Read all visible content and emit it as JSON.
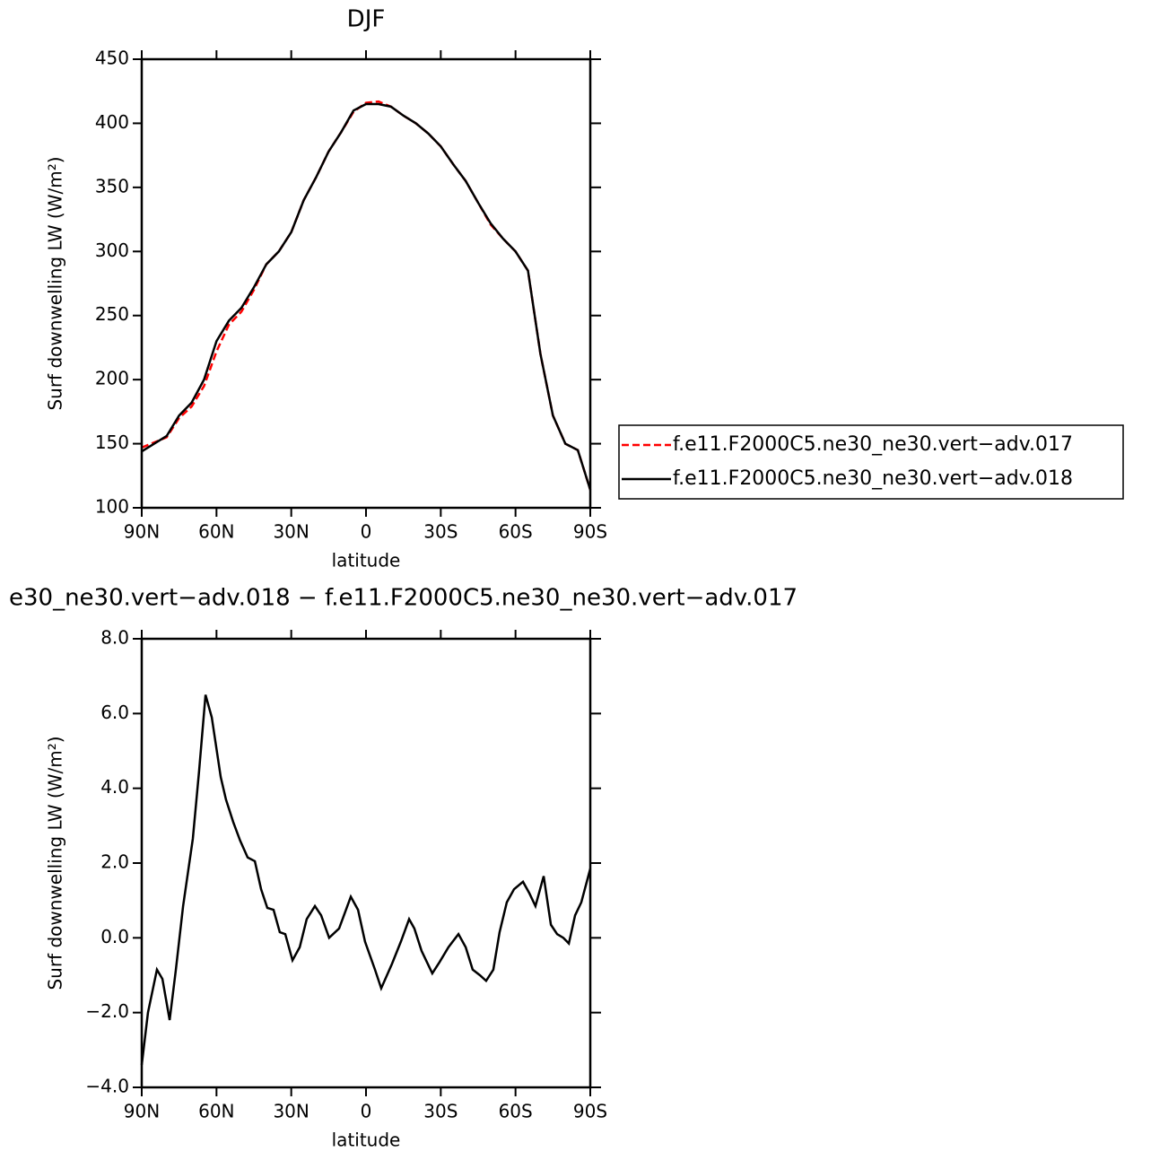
{
  "chart_data": [
    {
      "type": "line",
      "title": "DJF",
      "x_label": "latitude",
      "y_label": "Surf downwelling LW (W/m²)",
      "x": [
        90,
        85,
        80,
        75,
        70,
        65,
        60,
        55,
        50,
        45,
        40,
        35,
        30,
        25,
        20,
        15,
        10,
        5,
        0,
        -5,
        -10,
        -15,
        -20,
        -25,
        -30,
        -35,
        -40,
        -45,
        -50,
        -55,
        -60,
        -65,
        -70,
        -75,
        -80,
        -85,
        -90
      ],
      "series": [
        {
          "name": "f.e11.F2000C5.ne30_ne30.vert−adv.017",
          "color": "#ff0000",
          "line_style": "dashed",
          "values": [
            147,
            151,
            155,
            170,
            179,
            195,
            222,
            243,
            253,
            270,
            290,
            300,
            315,
            340,
            358,
            378,
            393,
            409,
            416,
            417,
            413,
            406,
            400,
            392,
            382,
            368,
            355,
            338,
            321,
            310,
            300,
            285,
            220,
            172,
            150,
            145,
            114
          ]
        },
        {
          "name": "f.e11.F2000C5.ne30_ne30.vert−adv.018",
          "color": "#000000",
          "line_style": "solid",
          "values": [
            144,
            150,
            156,
            172,
            182,
            200,
            230,
            246,
            256,
            272,
            290,
            300,
            315,
            340,
            358,
            378,
            393,
            410,
            415,
            415,
            413,
            406,
            400,
            392,
            382,
            368,
            355,
            338,
            322,
            310,
            300,
            285,
            220,
            172,
            150,
            145,
            114
          ]
        }
      ],
      "xlim": [
        90,
        -90
      ],
      "xticks": [
        {
          "value": 90,
          "label": "90N"
        },
        {
          "value": 60,
          "label": "60N"
        },
        {
          "value": 30,
          "label": "30N"
        },
        0,
        {
          "value": -30,
          "label": "30S"
        },
        {
          "value": -60,
          "label": "60S"
        },
        {
          "value": -90,
          "label": "90S"
        }
      ],
      "ylim": [
        100,
        450
      ],
      "yticks": [
        100,
        150,
        200,
        250,
        300,
        350,
        400,
        450
      ],
      "legend": "right"
    },
    {
      "type": "line",
      "title": "e30_ne30.vert−adv.018 − f.e11.F2000C5.ne30_ne30.vert−adv.017",
      "x_label": "latitude",
      "y_label": "Surf downwelling LW (W/m²)",
      "x": [
        90,
        87.5,
        83.9,
        81.7,
        78.8,
        76.3,
        73.4,
        69.5,
        67.0,
        64.4,
        61.9,
        58.3,
        56.2,
        53.3,
        50.5,
        47.5,
        44.6,
        42.1,
        39.6,
        37.1,
        34.6,
        32.4,
        29.5,
        26.6,
        23.8,
        20.5,
        18.0,
        14.8,
        10.8,
        6.1,
        3.2,
        0.4,
        -3.6,
        -6.1,
        -10.4,
        -14.0,
        -17.3,
        -19.4,
        -22.3,
        -26.6,
        -29.5,
        -33.1,
        -37.1,
        -40.0,
        -42.8,
        -45.7,
        -48.2,
        -51.1,
        -53.6,
        -56.5,
        -59.4,
        -63.0,
        -65.5,
        -68.0,
        -71.3,
        -74.2,
        -76.7,
        -79.2,
        -81.4,
        -83.9,
        -86.4,
        -90
      ],
      "series": [
        {
          "color": "#000000",
          "line_style": "solid",
          "values": [
            -3.4,
            -2.0,
            -0.85,
            -1.1,
            -2.2,
            -0.85,
            0.85,
            2.65,
            4.45,
            6.5,
            5.9,
            4.3,
            3.7,
            3.1,
            2.6,
            2.15,
            2.05,
            1.3,
            0.8,
            0.75,
            0.15,
            0.1,
            -0.6,
            -0.25,
            0.5,
            0.85,
            0.6,
            0.0,
            0.25,
            1.1,
            0.75,
            -0.1,
            -0.85,
            -1.35,
            -0.7,
            -0.1,
            0.5,
            0.25,
            -0.35,
            -0.95,
            -0.65,
            -0.25,
            0.1,
            -0.25,
            -0.85,
            -1.0,
            -1.15,
            -0.85,
            0.15,
            0.95,
            1.3,
            1.5,
            1.2,
            0.85,
            1.65,
            0.35,
            0.1,
            0.0,
            -0.15,
            0.6,
            0.95,
            1.85
          ]
        }
      ],
      "xlim": [
        90,
        -90
      ],
      "xticks": [
        {
          "value": 90,
          "label": "90N"
        },
        {
          "value": 60,
          "label": "60N"
        },
        {
          "value": 30,
          "label": "30N"
        },
        0,
        {
          "value": -30,
          "label": "30S"
        },
        {
          "value": -60,
          "label": "60S"
        },
        {
          "value": -90,
          "label": "90S"
        }
      ],
      "ylim": [
        -4,
        8
      ],
      "yticks": [
        {
          "value": -4,
          "label": "−4.0"
        },
        {
          "value": -2,
          "label": "−2.0"
        },
        {
          "value": 0,
          "label": "0.0"
        },
        {
          "value": 2,
          "label": "2.0"
        },
        {
          "value": 4,
          "label": "4.0"
        },
        {
          "value": 6,
          "label": "6.0"
        },
        {
          "value": 8,
          "label": "8.0"
        }
      ]
    }
  ]
}
